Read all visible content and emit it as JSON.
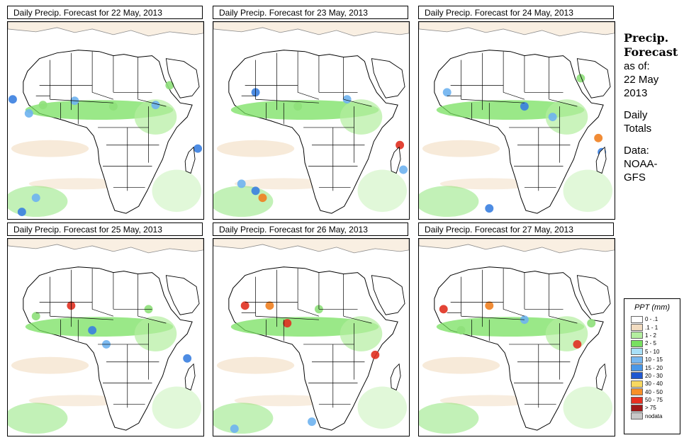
{
  "panels": [
    {
      "title": "Daily Precip. Forecast for  22 May, 2013",
      "rain": [
        [
          7,
          110,
          "#3A7FE0"
        ],
        [
          30,
          130,
          "#6EB2F0"
        ],
        [
          50,
          118,
          "#8EE07A"
        ],
        [
          95,
          112,
          "#6EB2F0"
        ],
        [
          150,
          120,
          "#8EE07A"
        ],
        [
          210,
          118,
          "#6EB2F0"
        ],
        [
          230,
          90,
          "#8EE07A"
        ],
        [
          270,
          180,
          "#3A7FE0"
        ],
        [
          20,
          270,
          "#3A7FE0"
        ],
        [
          40,
          250,
          "#6EB2F0"
        ]
      ]
    },
    {
      "title": "Daily Precip. Forecast for  23 May, 2013",
      "rain": [
        [
          60,
          100,
          "#3A7FE0"
        ],
        [
          120,
          120,
          "#8EE07A"
        ],
        [
          190,
          110,
          "#6EB2F0"
        ],
        [
          265,
          175,
          "#E03020"
        ],
        [
          270,
          210,
          "#6EB2F0"
        ],
        [
          60,
          240,
          "#3A7FE0"
        ],
        [
          70,
          250,
          "#F08020"
        ],
        [
          40,
          230,
          "#6EB2F0"
        ]
      ]
    },
    {
      "title": "Daily Precip. Forecast for  24 May, 2013",
      "rain": [
        [
          40,
          100,
          "#6EB2F0"
        ],
        [
          150,
          120,
          "#3A7FE0"
        ],
        [
          190,
          135,
          "#6EB2F0"
        ],
        [
          255,
          165,
          "#F08020"
        ],
        [
          260,
          185,
          "#3A7FE0"
        ],
        [
          100,
          265,
          "#3A7FE0"
        ],
        [
          230,
          80,
          "#8EE07A"
        ]
      ]
    },
    {
      "title": "Daily Precip. Forecast for  25 May, 2013",
      "rain": [
        [
          90,
          95,
          "#E03020"
        ],
        [
          120,
          130,
          "#3A7FE0"
        ],
        [
          140,
          150,
          "#6EB2F0"
        ],
        [
          200,
          100,
          "#8EE07A"
        ],
        [
          255,
          170,
          "#3A7FE0"
        ],
        [
          40,
          110,
          "#8EE07A"
        ]
      ]
    },
    {
      "title": "Daily Precip. Forecast for  26 May, 2013",
      "rain": [
        [
          45,
          95,
          "#E03020"
        ],
        [
          80,
          95,
          "#F08020"
        ],
        [
          105,
          120,
          "#E03020"
        ],
        [
          150,
          100,
          "#8EE07A"
        ],
        [
          230,
          165,
          "#E03020"
        ],
        [
          140,
          260,
          "#6EB2F0"
        ],
        [
          30,
          270,
          "#6EB2F0"
        ]
      ]
    },
    {
      "title": "Daily Precip. Forecast for  27 May, 2013",
      "rain": [
        [
          35,
          100,
          "#E03020"
        ],
        [
          100,
          95,
          "#F08020"
        ],
        [
          150,
          115,
          "#6EB2F0"
        ],
        [
          225,
          150,
          "#E03020"
        ],
        [
          245,
          120,
          "#8EE07A"
        ],
        [
          60,
          130,
          "#8EE07A"
        ]
      ]
    }
  ],
  "side": {
    "heading1": "Precip.",
    "heading2": "Forecast",
    "asof1": "as of:",
    "asof2": "22 May",
    "asof3": "2013",
    "daily1": "Daily",
    "daily2": "Totals",
    "data1": "Data:",
    "data2": "NOAA-",
    "data3": "GFS"
  },
  "legend": {
    "title": "PPT (mm)",
    "items": [
      {
        "label": "0 - .1",
        "color": "#FFFFFF"
      },
      {
        "label": ".1 - 1",
        "color": "#F2DCC0"
      },
      {
        "label": "1 - 2",
        "color": "#B4EEA0"
      },
      {
        "label": "2 - 5",
        "color": "#78E060"
      },
      {
        "label": "5 - 10",
        "color": "#A8E0F8"
      },
      {
        "label": "10 - 15",
        "color": "#78B8F0"
      },
      {
        "label": "15 - 20",
        "color": "#4A98E8"
      },
      {
        "label": "20 - 30",
        "color": "#2058D0"
      },
      {
        "label": "30 - 40",
        "color": "#F8D860"
      },
      {
        "label": "40 - 50",
        "color": "#F89028"
      },
      {
        "label": "50 - 75",
        "color": "#E83020"
      },
      {
        "label": "> 75",
        "color": "#A01818"
      },
      {
        "label": "nodata",
        "color": "#C8C8C8"
      }
    ]
  }
}
